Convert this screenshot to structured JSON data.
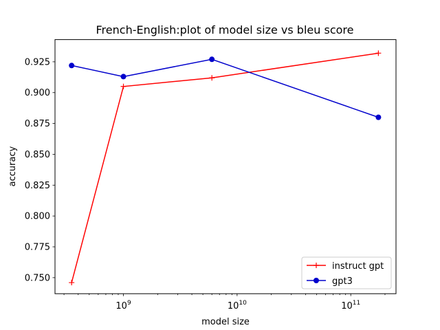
{
  "chart_data": {
    "type": "line",
    "title": "French-English:plot of model size vs bleu score",
    "xlabel": "model size",
    "ylabel": "accuracy",
    "xscale": "log",
    "xlim": [
      250000000,
      250000000000
    ],
    "ylim": [
      0.737,
      0.943
    ],
    "x_major_ticks": [
      {
        "value": 1000000000,
        "base": "10",
        "exp": "9"
      },
      {
        "value": 10000000000,
        "base": "10",
        "exp": "10"
      },
      {
        "value": 100000000000,
        "base": "10",
        "exp": "11"
      }
    ],
    "y_ticks": [
      {
        "value": 0.75,
        "label": "0.750"
      },
      {
        "value": 0.775,
        "label": "0.775"
      },
      {
        "value": 0.8,
        "label": "0.800"
      },
      {
        "value": 0.825,
        "label": "0.825"
      },
      {
        "value": 0.85,
        "label": "0.850"
      },
      {
        "value": 0.875,
        "label": "0.875"
      },
      {
        "value": 0.9,
        "label": "0.900"
      },
      {
        "value": 0.925,
        "label": "0.925"
      }
    ],
    "grid": false,
    "legend_position": "lower-right",
    "series": [
      {
        "name": "instruct gpt",
        "color": "#ff0000",
        "marker": "plus",
        "x": [
          350000000,
          1000000000,
          6000000000,
          175000000000
        ],
        "y": [
          0.746,
          0.905,
          0.912,
          0.932
        ]
      },
      {
        "name": "gpt3",
        "color": "#0000cc",
        "marker": "circle",
        "x": [
          350000000,
          1000000000,
          6000000000,
          175000000000
        ],
        "y": [
          0.922,
          0.913,
          0.927,
          0.88
        ]
      }
    ]
  }
}
